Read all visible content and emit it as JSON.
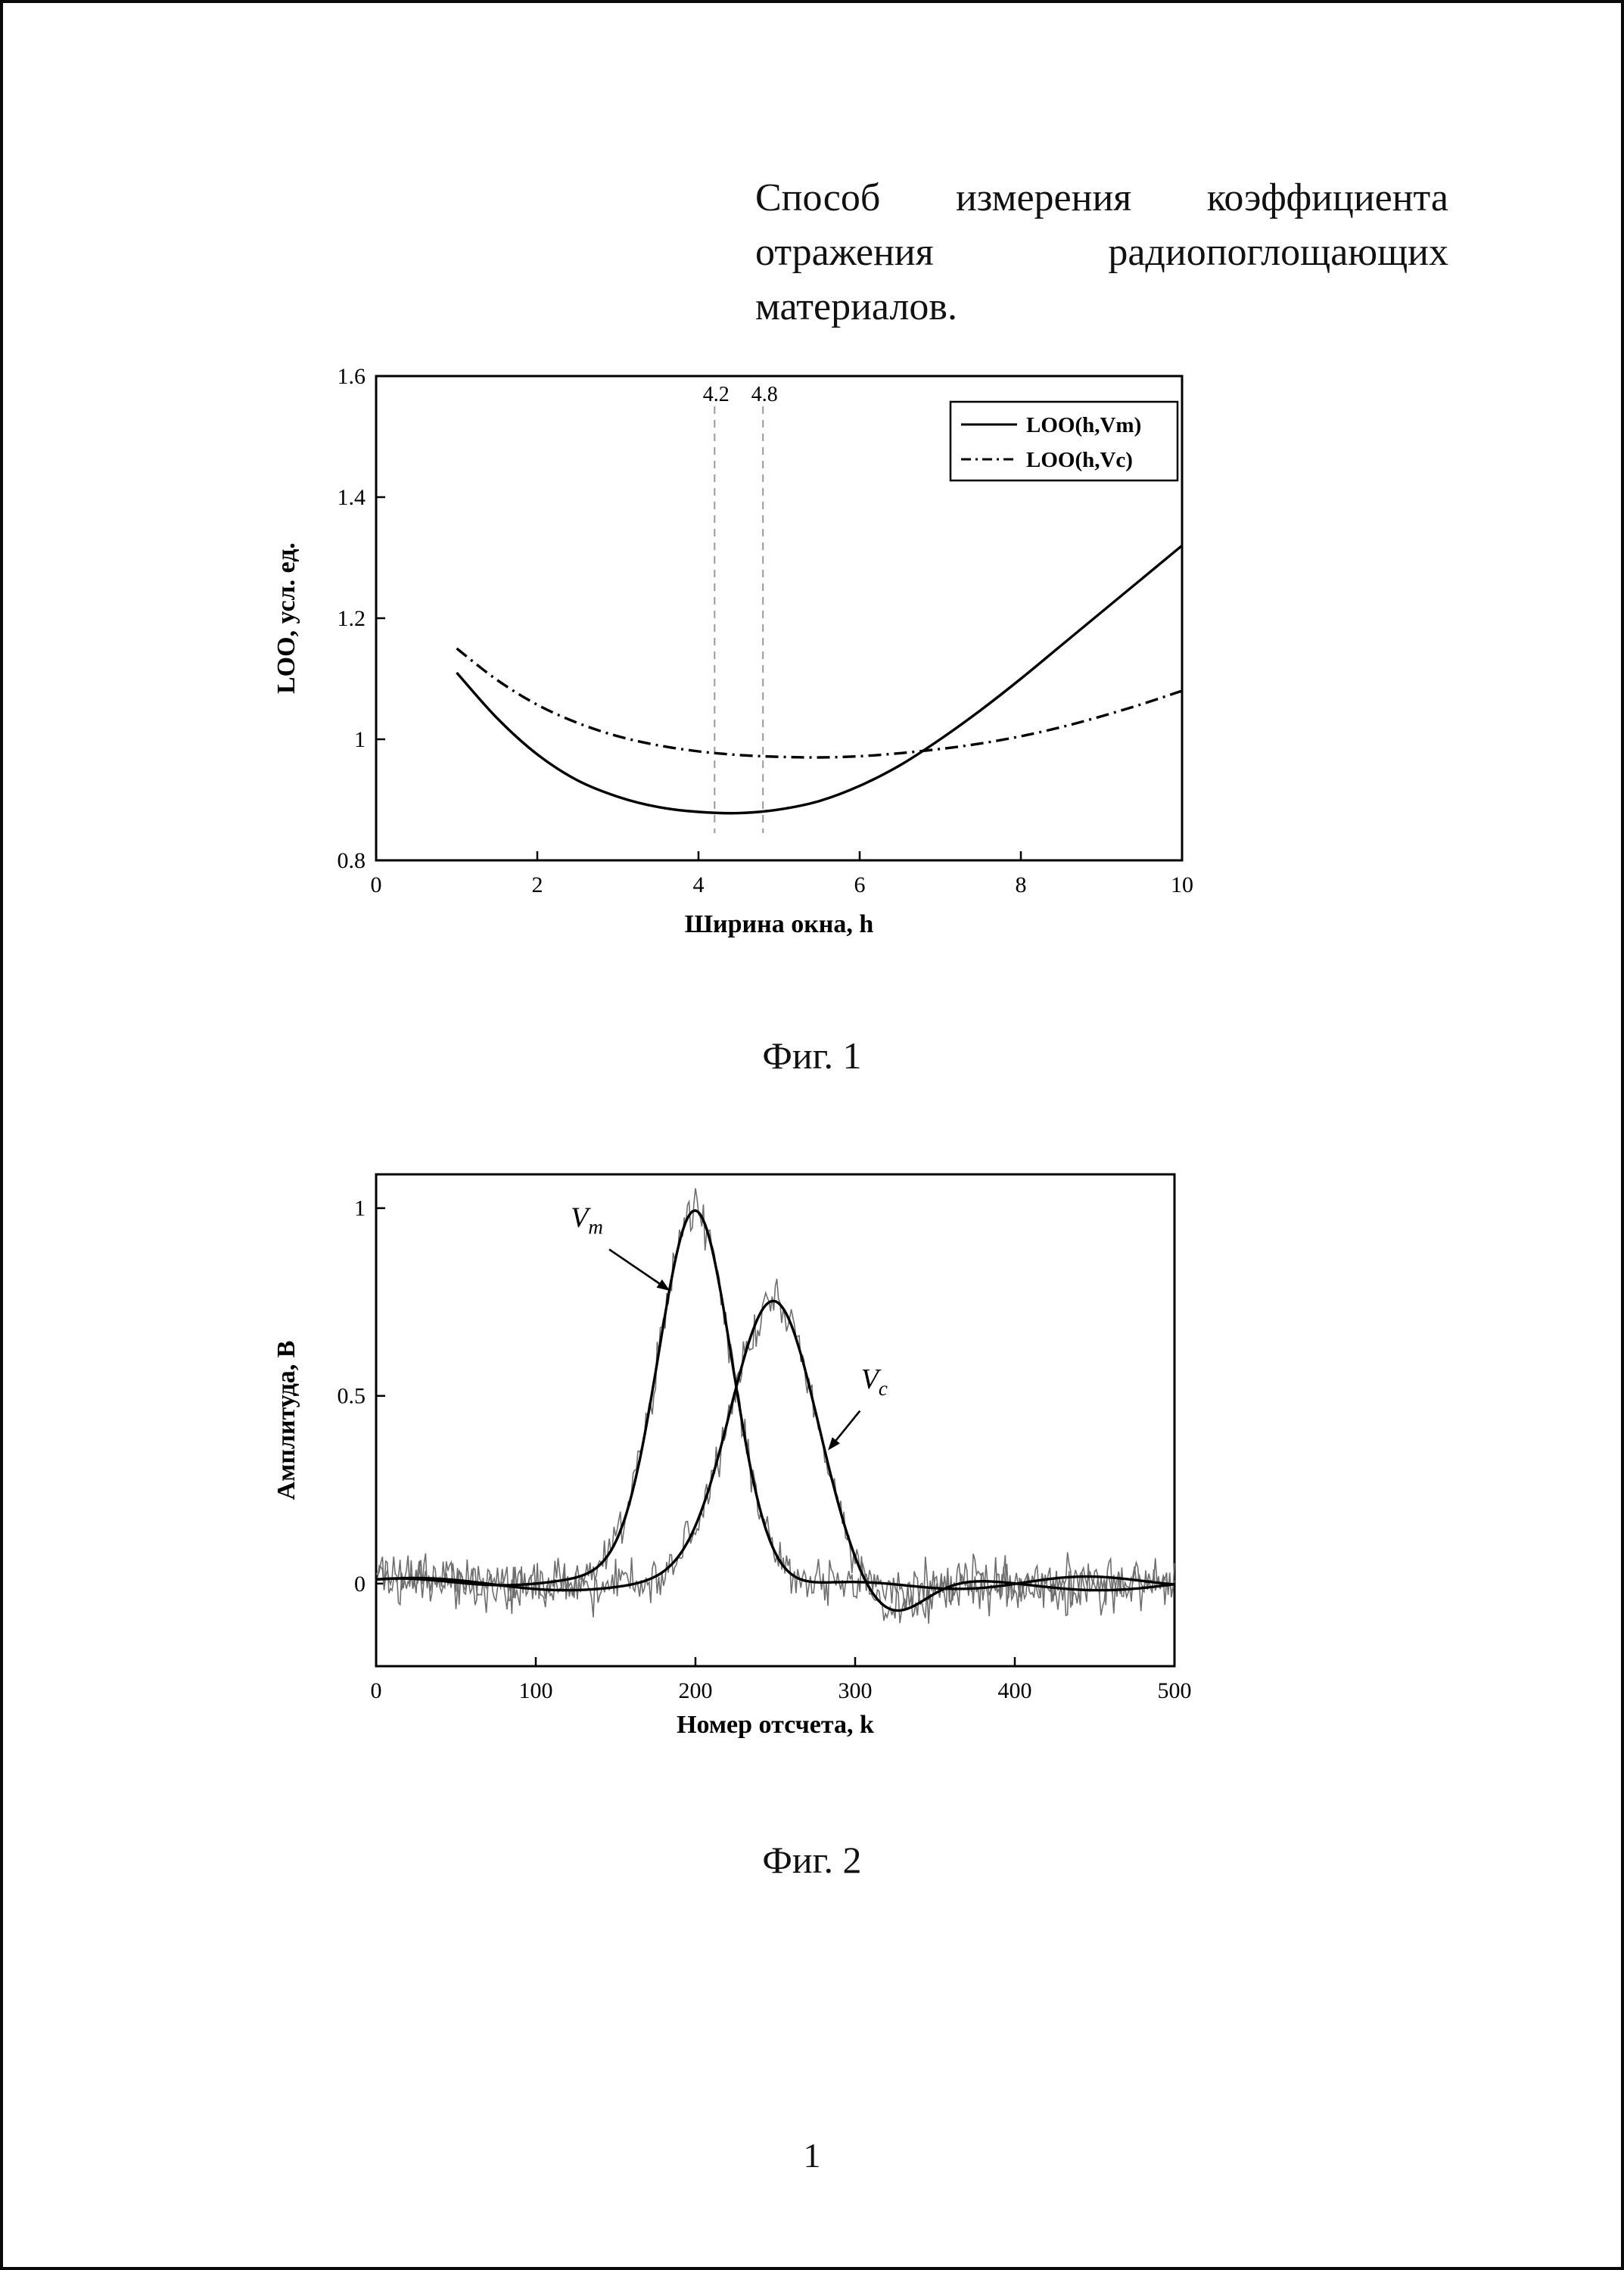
{
  "page": {
    "number": "1"
  },
  "title": {
    "line1": "Способ измерения коэффициента",
    "line2": "отражения радиопоглощающих",
    "line3": "материалов."
  },
  "chart_data": [
    {
      "id": "fig1",
      "type": "line",
      "caption": "Фиг. 1",
      "xlabel": "Ширина окна, h",
      "ylabel": "LOO, усл. ед.",
      "xlim": [
        0,
        10
      ],
      "ylim": [
        0.8,
        1.6
      ],
      "xticks": [
        0,
        2,
        4,
        6,
        8,
        10
      ],
      "xtick_labels": [
        "0",
        "2",
        "4",
        "6",
        "8",
        "10"
      ],
      "yticks": [
        0.8,
        1.0,
        1.2,
        1.4,
        1.6
      ],
      "ytick_labels": [
        "0.8",
        "1",
        "1.2",
        "1.4",
        "1.6"
      ],
      "grid": false,
      "legend_position": "top-right",
      "legend": [
        {
          "label": "LOO(h,Vm)",
          "style": "solid"
        },
        {
          "label": "LOO(h,Vc)",
          "style": "dashdot"
        }
      ],
      "markers": [
        {
          "x": 4.2,
          "label": "4.2"
        },
        {
          "x": 4.8,
          "label": "4.8"
        }
      ],
      "series": [
        {
          "name": "LOO(h,Vm)",
          "style": "solid",
          "color": "#000000",
          "x": [
            1,
            1.5,
            2,
            2.5,
            3,
            3.5,
            4,
            4.5,
            5,
            5.5,
            6,
            6.5,
            7,
            7.5,
            8,
            8.5,
            9,
            9.5,
            10
          ],
          "y": [
            1.11,
            1.035,
            0.975,
            0.932,
            0.905,
            0.888,
            0.88,
            0.878,
            0.884,
            0.898,
            0.923,
            0.957,
            1.0,
            1.048,
            1.1,
            1.155,
            1.21,
            1.265,
            1.32
          ]
        },
        {
          "name": "LOO(h,Vc)",
          "style": "dashdot",
          "color": "#000000",
          "x": [
            1,
            1.5,
            2,
            2.5,
            3,
            3.5,
            4,
            4.5,
            5,
            5.5,
            6,
            6.5,
            7,
            7.5,
            8,
            8.5,
            9,
            9.5,
            10
          ],
          "y": [
            1.15,
            1.098,
            1.057,
            1.027,
            1.005,
            0.99,
            0.98,
            0.974,
            0.971,
            0.97,
            0.972,
            0.977,
            0.984,
            0.993,
            1.005,
            1.02,
            1.038,
            1.058,
            1.08
          ]
        }
      ]
    },
    {
      "id": "fig2",
      "type": "line",
      "caption": "Фиг. 2",
      "xlabel": "Номер отсчета, k",
      "ylabel": "Амплитуда, B",
      "xlim": [
        0,
        500
      ],
      "ylim": [
        -0.22,
        1.09
      ],
      "xticks": [
        0,
        100,
        200,
        300,
        400,
        500
      ],
      "xtick_labels": [
        "0",
        "100",
        "200",
        "300",
        "400",
        "500"
      ],
      "yticks": [
        0,
        0.5,
        1
      ],
      "ytick_labels": [
        "0",
        "0.5",
        "1"
      ],
      "grid": false,
      "noise": {
        "amplitude": 0.06,
        "color": "#6e6e6e"
      },
      "series": [
        {
          "name": "Vm",
          "color": "#000000",
          "peak_x": 200,
          "peak_y": 1.0,
          "sigma": 23,
          "noisy_copy": true
        },
        {
          "name": "Vc",
          "color": "#000000",
          "peak_x": 249,
          "peak_y": 0.75,
          "sigma": 27,
          "undershoot_x": 322,
          "undershoot_depth": -0.09,
          "noisy_copy": true
        }
      ],
      "annotations": [
        {
          "label": "Vm",
          "text_x": 132,
          "text_y": 0.95,
          "arrow_from_x": 146,
          "arrow_from_y": 0.89,
          "arrow_to_x": 184,
          "arrow_to_y": 0.78
        },
        {
          "label": "Vc",
          "text_x": 312,
          "text_y": 0.52,
          "arrow_from_x": 303,
          "arrow_from_y": 0.46,
          "arrow_to_x": 283,
          "arrow_to_y": 0.355
        }
      ]
    }
  ]
}
